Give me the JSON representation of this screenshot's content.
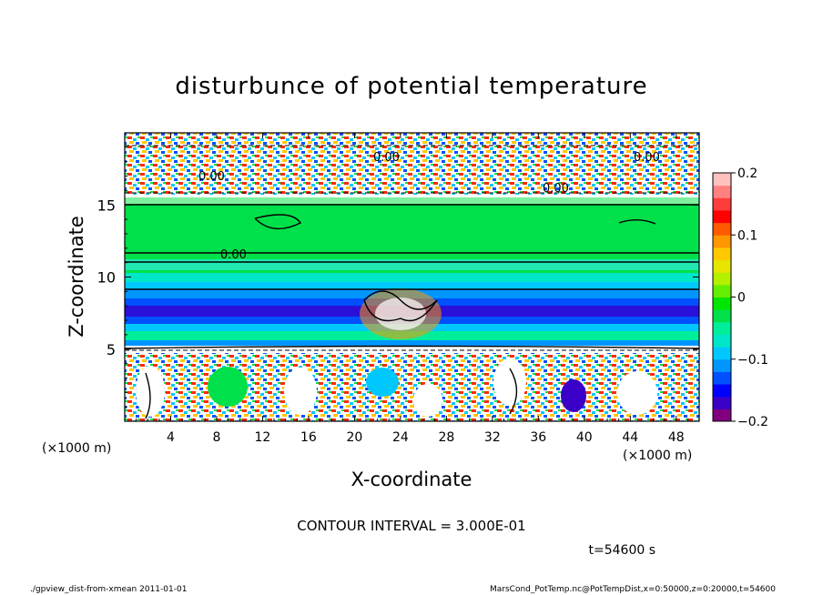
{
  "chart_data": {
    "type": "heatmap",
    "title": "disturbunce of potential temperature",
    "xlabel": "X-coordinate",
    "ylabel": "Z-coordinate",
    "x_unit": "(×1000 m)",
    "z_unit": "(×1000 m)",
    "xlim": [
      0,
      50
    ],
    "ylim": [
      0,
      20
    ],
    "x_ticks": [
      4,
      8,
      12,
      16,
      20,
      24,
      28,
      32,
      36,
      40,
      44,
      48
    ],
    "y_ticks": [
      5,
      10,
      15
    ],
    "colorbar": {
      "range": [
        -0.2,
        0.2
      ],
      "tick_values": [
        0.2,
        0.1,
        0,
        -0.1,
        -0.2
      ],
      "tick_labels": [
        "0.2",
        "0.1",
        "0",
        "−0.1",
        "−0.2"
      ],
      "colors": [
        "#800080",
        "#3a00c8",
        "#0000ff",
        "#0050ff",
        "#0096ff",
        "#00c8ff",
        "#00e6c8",
        "#00ee9a",
        "#00e04a",
        "#00e600",
        "#66ee00",
        "#b4f000",
        "#e6e600",
        "#ffc800",
        "#ff9600",
        "#ff5a00",
        "#ff0000",
        "#ff3c3c",
        "#ff8080",
        "#ffc0c0"
      ]
    },
    "contour_labels": [
      "0.00",
      "0.00",
      "0.00",
      "0.00",
      "0.00"
    ],
    "contour_interval": "CONTOUR INTERVAL = 3.000E-01",
    "time": "t=54600 s"
  },
  "footer": {
    "left": "./gpview_dist-from-xmean   2011-01-01",
    "right": "MarsCond_PotTemp.nc@PotTempDist,x=0:50000,z=0:20000,t=54600"
  }
}
